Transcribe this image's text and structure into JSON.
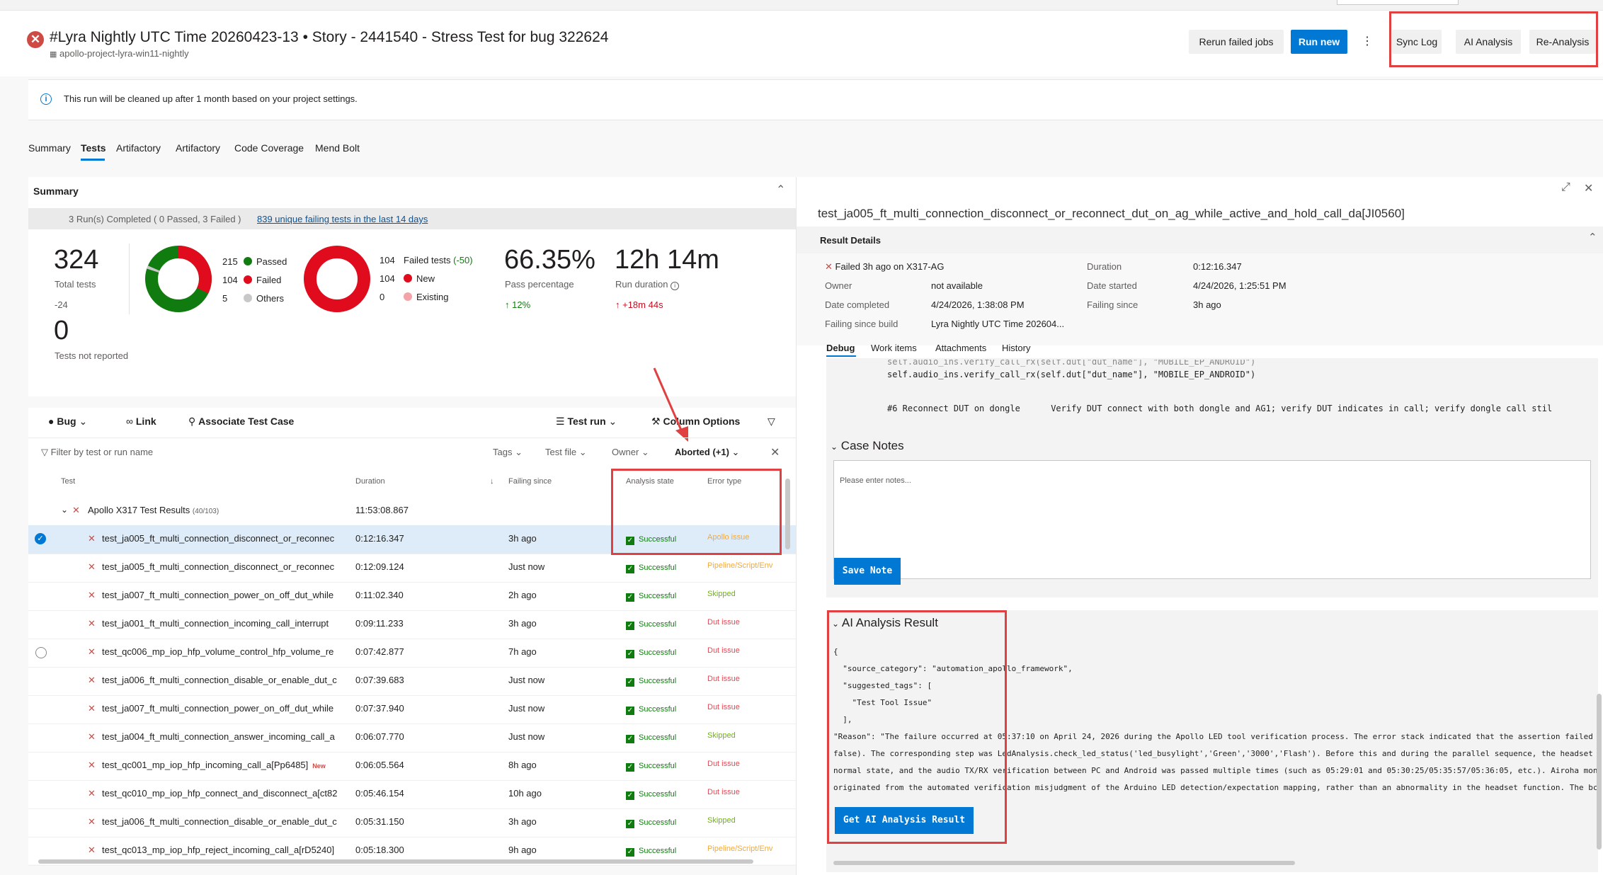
{
  "header": {
    "run_title": "#Lyra Nightly UTC Time 20260423-13 • Story - 2441540 - Stress Test for bug 322624",
    "pipeline": "apollo-project-lyra-win11-nightly",
    "rerun_label": "Rerun failed jobs",
    "run_new_label": "Run new",
    "more_label": "⋮",
    "sync_log_label": "Sync Log",
    "ai_analysis_label": "AI Analysis",
    "re_analysis_label": "Re-Analysis",
    "fail_icon": "✕"
  },
  "banner": {
    "text": "This run will be cleaned up after 1 month based on your project settings."
  },
  "tabs": [
    "Summary",
    "Tests",
    "Artifactory",
    "Artifactory",
    "Code Coverage",
    "Mend Bolt"
  ],
  "summary": {
    "title": "Summary",
    "runs_text": "3 Run(s) Completed ( 0 Passed, 3 Failed )",
    "failing_link": "839 unique failing tests in the last 14 days",
    "total": "324",
    "total_label": "Total tests",
    "total_delta": "-24",
    "not_reported": "0",
    "not_reported_label": "Tests not reported",
    "passed_count": "215",
    "passed_label": "Passed",
    "failed_count": "104",
    "failed_label": "Failed",
    "others_count": "5",
    "others_label": "Others",
    "failed_tests_count": "104",
    "failed_tests_label": "Failed tests",
    "failed_tests_delta": "(-50)",
    "new_count": "104",
    "new_label": "New",
    "existing_count": "0",
    "existing_label": "Existing",
    "pass_pct": "66.35%",
    "pass_pct_label": "Pass percentage",
    "pass_pct_delta": "↑ 12%",
    "duration": "12h 14m",
    "duration_label": "Run duration",
    "duration_delta": "↑ +18m 44s",
    "colors": {
      "passed": "#107c10",
      "failed": "#e00b1c",
      "others": "#c8c8c8",
      "existing": "#f4a3a8"
    }
  },
  "toolbar": {
    "bug": "Bug",
    "link": "Link",
    "associate": "Associate Test Case",
    "test_run": "Test run",
    "column_options": "Column Options"
  },
  "filters": {
    "placeholder": "Filter by test or run name",
    "tags": "Tags",
    "test_file": "Test file",
    "owner": "Owner",
    "aborted": "Aborted (+1)"
  },
  "columns": {
    "test": "Test",
    "duration": "Duration",
    "failing_since": "Failing since",
    "analysis_state": "Analysis state",
    "error_type": "Error type"
  },
  "group": {
    "name": "Apollo X317 Test Results",
    "count": "(40/103)",
    "duration": "11:53:08.867"
  },
  "rows": [
    {
      "name": "test_ja005_ft_multi_connection_disconnect_or_reconnec",
      "duration": "0:12:16.347",
      "since": "3h ago",
      "state": "Successful",
      "error": "Apollo issue",
      "error_color": "#f2a93b",
      "selected": true,
      "new": ""
    },
    {
      "name": "test_ja005_ft_multi_connection_disconnect_or_reconnec",
      "duration": "0:12:09.124",
      "since": "Just now",
      "state": "Successful",
      "error": "Pipeline/Script/Env",
      "error_color": "#f2a93b",
      "selected": false,
      "new": ""
    },
    {
      "name": "test_ja007_ft_multi_connection_power_on_off_dut_while",
      "duration": "0:11:02.340",
      "since": "2h ago",
      "state": "Successful",
      "error": "Skipped",
      "error_color": "#6bb700",
      "selected": false,
      "new": ""
    },
    {
      "name": "test_ja001_ft_multi_connection_incoming_call_interrupt",
      "duration": "0:09:11.233",
      "since": "3h ago",
      "state": "Successful",
      "error": "Dut issue",
      "error_color": "#e74856",
      "selected": false,
      "new": ""
    },
    {
      "name": "test_qc006_mp_iop_hfp_volume_control_hfp_volume_re",
      "duration": "0:07:42.877",
      "since": "7h ago",
      "state": "Successful",
      "error": "Dut issue",
      "error_color": "#e74856",
      "selected": false,
      "radio": true,
      "new": ""
    },
    {
      "name": "test_ja006_ft_multi_connection_disable_or_enable_dut_c",
      "duration": "0:07:39.683",
      "since": "Just now",
      "state": "Successful",
      "error": "Dut issue",
      "error_color": "#e74856",
      "selected": false,
      "new": ""
    },
    {
      "name": "test_ja007_ft_multi_connection_power_on_off_dut_while",
      "duration": "0:07:37.940",
      "since": "Just now",
      "state": "Successful",
      "error": "Dut issue",
      "error_color": "#e74856",
      "selected": false,
      "new": ""
    },
    {
      "name": "test_ja004_ft_multi_connection_answer_incoming_call_a",
      "duration": "0:06:07.770",
      "since": "Just now",
      "state": "Successful",
      "error": "Skipped",
      "error_color": "#6bb700",
      "selected": false,
      "new": ""
    },
    {
      "name": "test_qc001_mp_iop_hfp_incoming_call_a[Pp6485]",
      "duration": "0:06:05.564",
      "since": "8h ago",
      "state": "Successful",
      "error": "Dut issue",
      "error_color": "#e74856",
      "selected": false,
      "new": "New"
    },
    {
      "name": "test_qc010_mp_iop_hfp_connect_and_disconnect_a[ct82",
      "duration": "0:05:46.154",
      "since": "10h ago",
      "state": "Successful",
      "error": "Dut issue",
      "error_color": "#e74856",
      "selected": false,
      "new": ""
    },
    {
      "name": "test_ja006_ft_multi_connection_disable_or_enable_dut_c",
      "duration": "0:05:31.150",
      "since": "3h ago",
      "state": "Successful",
      "error": "Skipped",
      "error_color": "#6bb700",
      "selected": false,
      "new": ""
    },
    {
      "name": "test_qc013_mp_iop_hfp_reject_incoming_call_a[rD5240]",
      "duration": "0:05:18.300",
      "since": "9h ago",
      "state": "Successful",
      "error": "Pipeline/Script/Env",
      "error_color": "#f2a93b",
      "selected": false,
      "new": ""
    }
  ],
  "detail": {
    "title": "test_ja005_ft_multi_connection_disconnect_or_reconnect_dut_on_ag_while_active_and_hold_call_da[JI0560]",
    "result_details": "Result Details",
    "failed_on": "Failed 3h ago on X317-AG",
    "duration_label": "Duration",
    "duration": "0:12:16.347",
    "owner_label": "Owner",
    "owner": "not available",
    "date_started_label": "Date started",
    "date_started": "4/24/2026, 1:25:51 PM",
    "date_completed_label": "Date completed",
    "date_completed": "4/24/2026, 1:38:08 PM",
    "failing_since_label": "Failing since",
    "failing_since": "3h ago",
    "failing_build_label": "Failing since build",
    "failing_build": "Lyra Nightly UTC Time 202604...",
    "subtabs": [
      "Debug",
      "Work items",
      "Attachments",
      "History"
    ],
    "code_line1": "self.audio_ins.verify_call_rx(self.dut[\"dut_name\"], \"MOBILE_EP_ANDROID\")",
    "code_line2": "#6 Reconnect DUT on dongle      Verify DUT connect with both dongle and AG1; verify DUT indicates in call; verify dongle call stil",
    "case_notes": "Case Notes",
    "notes_placeholder": "Please enter notes...",
    "save_note": "Save Note",
    "ai_result": "AI Analysis Result",
    "json_lines": [
      "{",
      "  \"source_category\": \"automation_apollo_framework\",",
      "  \"suggested_tags\": [",
      "    \"Test Tool Issue\"",
      "  ],",
      "\"Reason\": \"The failure occurred at 05:37:10 on April 24, 2026 during the Apollo LED tool verification process. The error stack indicated that the assertion failed",
      "false). The corresponding step was LedAnalysis.check_led_status('led_busylight','Green','3000','Flash'). Before this and during the parallel sequence, the headset",
      "normal state, and the audio TX/RX verification between PC and Android was passed multiple times (such as 05:29:01 and 05:30:25/05:35:57/05:36:05, etc.). Airoha mon",
      "originated from the automated verification misjudgment of the Arduino LED detection/expectation mapping, rather than an abnormality in the headset function. The bc"
    ],
    "get_ai_btn": "Get AI Analysis Result"
  }
}
